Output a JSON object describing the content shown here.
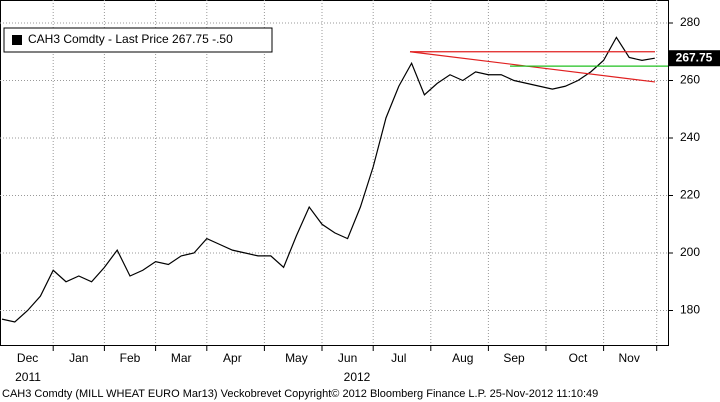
{
  "chart_data": {
    "type": "line",
    "categories": [
      null,
      null,
      "Dec",
      null,
      null,
      null,
      "Jan",
      null,
      null,
      null,
      "Feb",
      null,
      null,
      null,
      "Mar",
      null,
      null,
      null,
      "Apr",
      null,
      null,
      null,
      null,
      "May",
      null,
      null,
      null,
      "Jun",
      null,
      null,
      null,
      "Jul",
      null,
      null,
      null,
      null,
      "Aug",
      null,
      null,
      null,
      "Sep",
      null,
      null,
      null,
      null,
      "Oct",
      null,
      null,
      null,
      "Nov",
      null,
      null
    ],
    "year_labels": [
      "2011",
      "2012"
    ],
    "series": [
      {
        "name": "CAH3 Comdty - Last Price 267.75  -.50",
        "color": "#000000",
        "values": [
          177,
          176,
          180,
          185,
          194,
          190,
          192,
          190,
          195,
          201,
          192,
          194,
          197,
          196,
          199,
          200,
          205,
          203,
          201,
          200,
          199,
          199,
          195,
          206,
          216,
          210,
          207,
          205,
          216,
          230,
          247,
          258,
          266,
          255,
          259,
          262,
          260,
          263,
          262,
          262,
          260,
          259,
          258,
          257,
          258,
          260,
          263,
          267,
          275,
          268,
          267,
          267.75
        ]
      }
    ],
    "trendlines": [
      {
        "color": "#e02020",
        "values": [
          270,
          270
        ]
      },
      {
        "color": "#e02020",
        "values": [
          270,
          259.5
        ]
      },
      {
        "color": "#20c020",
        "values": [
          265,
          265
        ]
      }
    ],
    "ylim": [
      168,
      288
    ],
    "yticks": [
      180,
      200,
      220,
      240,
      260,
      280
    ],
    "grid": true,
    "footer": "CAH3 Comdty (MILL WHEAT EURO  Mar13) Veckobrevet  Copyright© 2012 Bloomberg Finance L.P.  25-Nov-2012 11:10:49"
  }
}
